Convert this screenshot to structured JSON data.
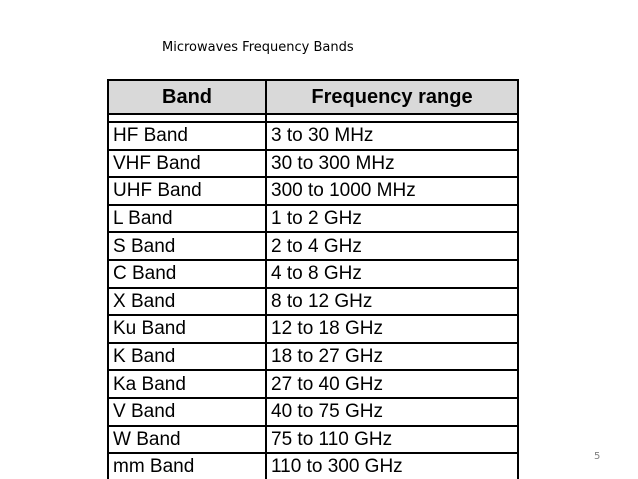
{
  "title": "Microwaves Frequency Bands",
  "table": {
    "headers": [
      "Band",
      "Frequency range"
    ],
    "rows": [
      [
        "HF Band",
        "3 to 30 MHz"
      ],
      [
        "VHF Band",
        "30 to 300 MHz"
      ],
      [
        "UHF Band",
        "300 to 1000 MHz"
      ],
      [
        "L Band",
        "1 to 2 GHz"
      ],
      [
        "S Band",
        "2 to 4 GHz"
      ],
      [
        "C Band",
        "4 to 8 GHz"
      ],
      [
        "X Band",
        "8 to 12 GHz"
      ],
      [
        "Ku Band",
        "12 to 18 GHz"
      ],
      [
        "K Band",
        "18 to 27 GHz"
      ],
      [
        "Ka Band",
        "27 to 40 GHz"
      ],
      [
        "V Band",
        "40 to 75 GHz"
      ],
      [
        "W Band",
        "75 to 110 GHz"
      ],
      [
        "mm Band",
        "110 to 300 GHz"
      ]
    ]
  },
  "page_number": "5"
}
